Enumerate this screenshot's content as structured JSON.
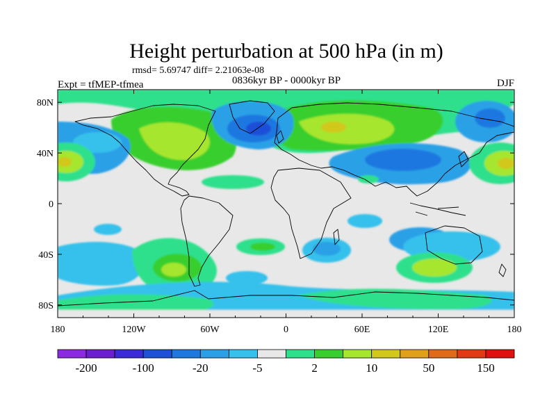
{
  "chart_data": {
    "type": "heatmap",
    "title": "Height perturbation at 500 hPa (in m)",
    "stats_line": "rmsd= 5.69747  diff= 2.21063e-08",
    "period_line": "0836kyr BP - 0000kyr BP",
    "experiment_label": "Expt = tfMEP-tfmea",
    "season_label": "DJF",
    "x_axis": {
      "range": [
        -180,
        180
      ],
      "ticks": [
        -180,
        -120,
        -60,
        0,
        60,
        120,
        180
      ],
      "tick_labels": [
        "180",
        "120W",
        "60W",
        "0",
        "60E",
        "120E",
        "180"
      ]
    },
    "y_axis": {
      "range": [
        -90,
        90
      ],
      "ticks": [
        80,
        40,
        0,
        -40,
        -80
      ],
      "tick_labels": [
        "80N",
        "40N",
        "0",
        "40S",
        "80S"
      ]
    },
    "colorbar": {
      "colors": [
        "#8a2be2",
        "#6a1fd0",
        "#3a2ad8",
        "#1f50d8",
        "#1e78e0",
        "#2ca0e6",
        "#35c1eb",
        "#e8e8e8",
        "#2ee08c",
        "#38cf2e",
        "#a6e62d",
        "#d2c81c",
        "#e0a01a",
        "#e06a18",
        "#e23a14",
        "#e01010"
      ],
      "labels": [
        "-200",
        "-100",
        "-20",
        "-5",
        "2",
        "10",
        "50",
        "150"
      ]
    },
    "features": [
      {
        "name": "north-atlantic-low",
        "level": "-20",
        "lon": -18,
        "lat": 62
      },
      {
        "name": "eurasia-high",
        "level": "50",
        "lon": 35,
        "lat": 60
      },
      {
        "name": "north-america-high",
        "level": "10",
        "lon": -85,
        "lat": 58
      },
      {
        "name": "north-pacific-east-high",
        "level": "50",
        "lon": -170,
        "lat": 32
      },
      {
        "name": "north-pacific-west-high",
        "level": "50",
        "lon": 150,
        "lat": 32
      },
      {
        "name": "south-atlantic-high",
        "level": "10",
        "lon": -95,
        "lat": -55
      },
      {
        "name": "south-indian-high",
        "level": "10",
        "lon": 115,
        "lat": -50
      }
    ]
  }
}
